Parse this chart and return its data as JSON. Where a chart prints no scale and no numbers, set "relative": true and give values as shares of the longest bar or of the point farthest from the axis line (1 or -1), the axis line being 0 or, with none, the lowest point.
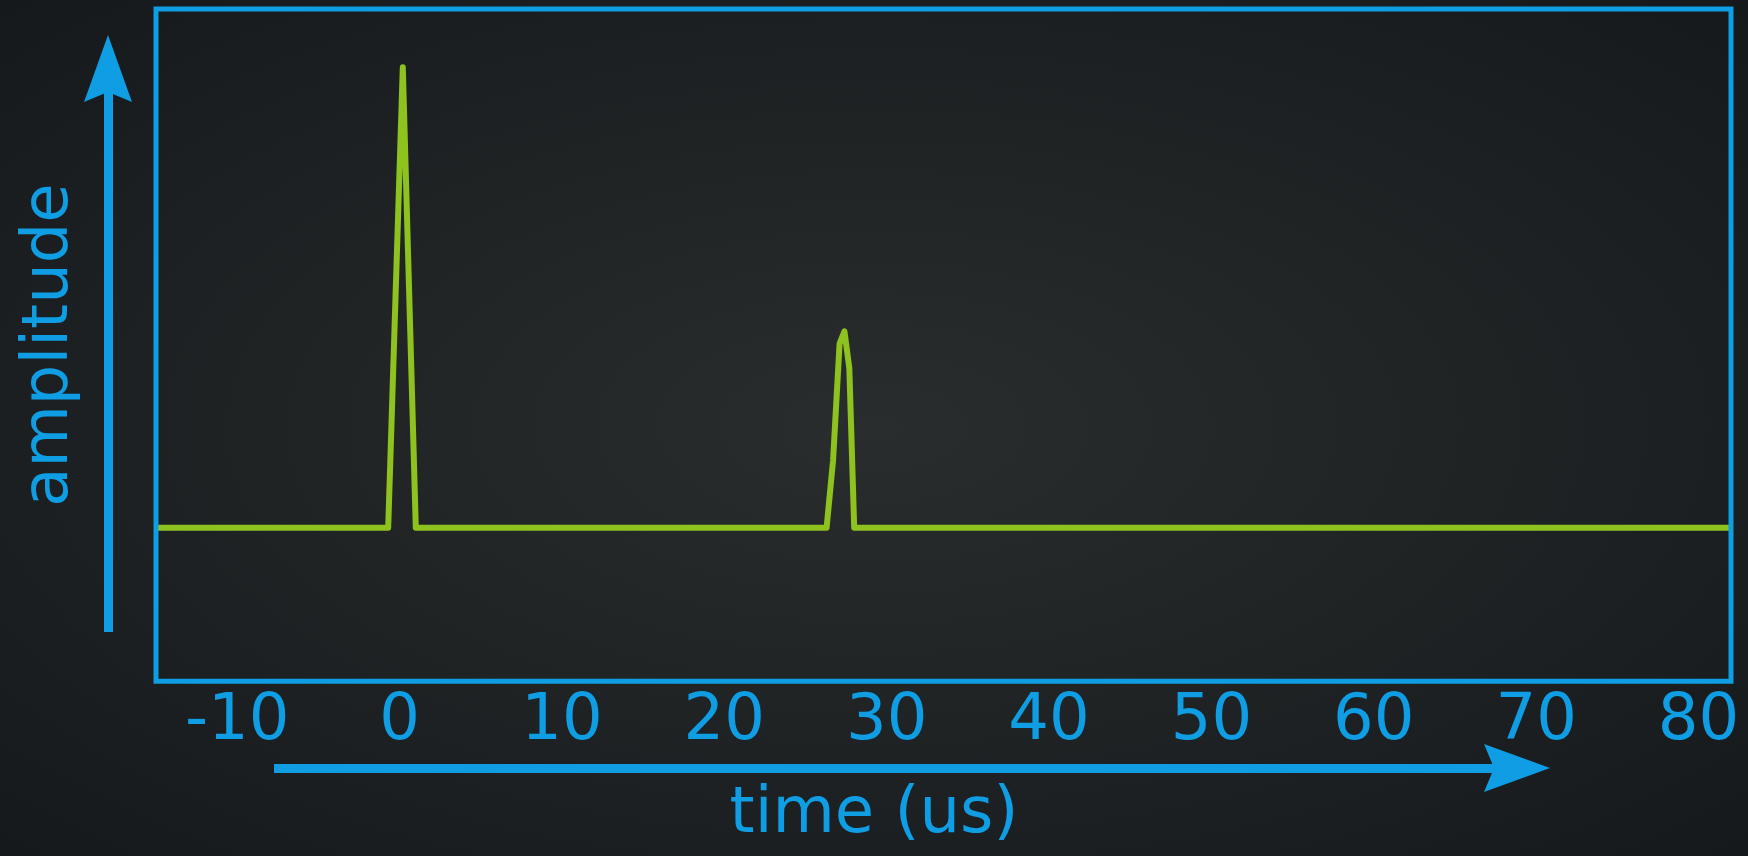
{
  "chart_data": {
    "type": "line",
    "xlabel": "time (us)",
    "ylabel": "amplitude",
    "relative": true,
    "legend": false,
    "marker": "none",
    "xlim": [
      -15,
      82
    ],
    "xticks": [
      -10,
      0,
      10,
      20,
      30,
      40,
      50,
      60,
      70,
      80
    ],
    "x": [
      -15,
      -0.7,
      0.2,
      1.0,
      26.3,
      26.7,
      27.1,
      27.4,
      27.7,
      28.0,
      82
    ],
    "series": [
      {
        "color": "#8dc21f",
        "values": [
          0.25,
          0.25,
          1,
          0.25,
          0.25,
          0.36,
          0.55,
          0.57,
          0.51,
          0.25,
          0.25
        ]
      }
    ]
  }
}
